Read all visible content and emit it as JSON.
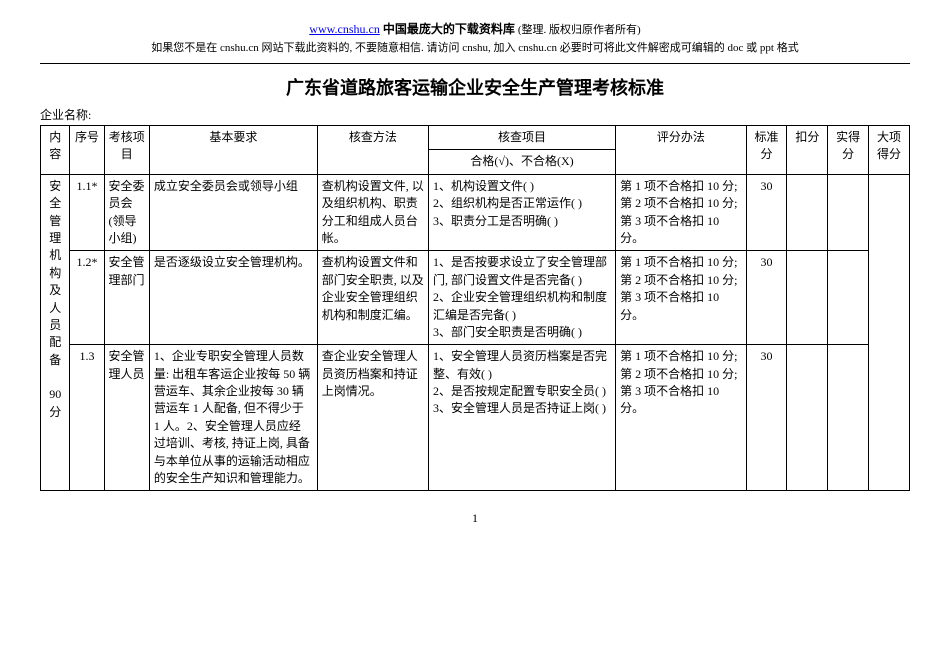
{
  "header": {
    "url": "www.cnshu.cn",
    "site_desc_bold": "中国最庞大的下载资料库",
    "site_desc_paren": "(整理. 版权归原作者所有)",
    "line2": "如果您不是在 cnshu.cn 网站下载此资料的, 不要随意相信. 请访问 cnshu, 加入 cnshu.cn 必要时可将此文件解密成可编辑的 doc 或 ppt 格式"
  },
  "title": "广东省道路旅客运输企业安全生产管理考核标准",
  "company_label": "企业名称:",
  "columns": {
    "content": "内容",
    "seq": "序号",
    "item": "考核项目",
    "basic": "基本要求",
    "method": "核查方法",
    "check": "核查项目",
    "scoring": "评分办法",
    "std": "标准分",
    "deduct": "扣分",
    "actual": "实得分",
    "major": "大项得分"
  },
  "check_sub": "合格(√)、不合格(X)",
  "section": {
    "name": "安全管理机构及人员配备",
    "score": "90分"
  },
  "rows": [
    {
      "seq": "1.1*",
      "item": "安全委员会(领导小组)",
      "basic": "成立安全委员会或领导小组",
      "method": "查机构设置文件, 以及组织机构、职责分工和组成人员台帐。",
      "check": "1、机构设置文件(  )\n2、组织机构是否正常运作(  )\n3、职责分工是否明确(  )",
      "scoring": "第 1 项不合格扣 10 分; 第 2 项不合格扣 10 分; 第 3 项不合格扣 10 分。",
      "std": "30"
    },
    {
      "seq": "1.2*",
      "item": "安全管理部门",
      "basic": "是否逐级设立安全管理机构。",
      "method": "查机构设置文件和部门安全职责, 以及企业安全管理组织机构和制度汇编。",
      "check": "1、是否按要求设立了安全管理部门, 部门设置文件是否完备(  )\n2、企业安全管理组织机构和制度汇编是否完备(  )\n3、部门安全职责是否明确(  )",
      "scoring": "第 1 项不合格扣 10 分; 第 2 项不合格扣 10 分; 第 3 项不合格扣 10 分。",
      "std": "30"
    },
    {
      "seq": "1.3",
      "item": "安全管理人员",
      "basic": "1、企业专职安全管理人员数量: 出租车客运企业按每 50 辆营运车、其余企业按每 30 辆营运车 1 人配备, 但不得少于 1 人。2、安全管理人员应经过培训、考核, 持证上岗, 具备与本单位从事的运输活动相应的安全生产知识和管理能力。",
      "method": "查企业安全管理人员资历档案和持证上岗情况。",
      "check": "1、安全管理人员资历档案是否完整、有效(  )\n2、是否按规定配置专职安全员(  )\n3、安全管理人员是否持证上岗(  )",
      "scoring": "第 1 项不合格扣 10 分; 第 2 项不合格扣 10 分; 第 3 项不合格扣 10 分。",
      "std": "30"
    }
  ],
  "page_number": "1"
}
